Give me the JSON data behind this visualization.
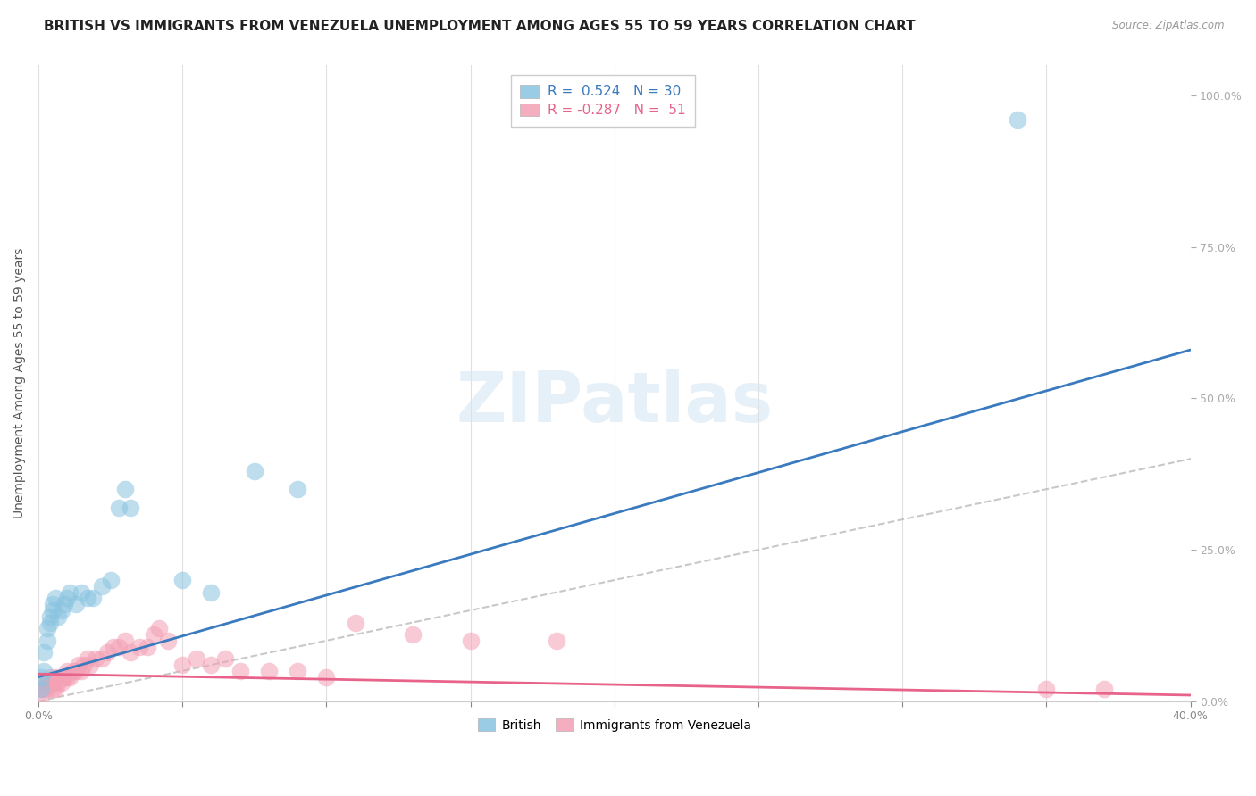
{
  "title": "BRITISH VS IMMIGRANTS FROM VENEZUELA UNEMPLOYMENT AMONG AGES 55 TO 59 YEARS CORRELATION CHART",
  "source": "Source: ZipAtlas.com",
  "ylabel": "Unemployment Among Ages 55 to 59 years",
  "xlim": [
    0.0,
    0.4
  ],
  "ylim": [
    0.0,
    1.05
  ],
  "x_ticks": [
    0.0,
    0.05,
    0.1,
    0.15,
    0.2,
    0.25,
    0.3,
    0.35,
    0.4
  ],
  "x_tick_labels": [
    "0.0%",
    "",
    "",
    "",
    "",
    "",
    "",
    "",
    "40.0%"
  ],
  "y_ticks_right": [
    0.0,
    0.25,
    0.5,
    0.75,
    1.0
  ],
  "y_tick_labels_right": [
    "0.0%",
    "25.0%",
    "50.0%",
    "75.0%",
    "100.0%"
  ],
  "british_color": "#89c4e1",
  "venezuela_color": "#f4a0b5",
  "british_line_color": "#3a7abf",
  "venezuela_line_color": "#e8638a",
  "ref_line_color": "#bbbbbb",
  "legend_british_R": "0.524",
  "legend_british_N": "30",
  "legend_venezuela_R": "-0.287",
  "legend_venezuela_N": "51",
  "legend_label_british": "British",
  "legend_label_venezuela": "Immigrants from Venezuela",
  "watermark": "ZIPatlas",
  "british_x": [
    0.001,
    0.001,
    0.002,
    0.002,
    0.003,
    0.003,
    0.004,
    0.004,
    0.005,
    0.005,
    0.006,
    0.007,
    0.008,
    0.009,
    0.01,
    0.011,
    0.013,
    0.015,
    0.017,
    0.019,
    0.022,
    0.025,
    0.028,
    0.03,
    0.032,
    0.05,
    0.06,
    0.075,
    0.09,
    0.34
  ],
  "british_y": [
    0.02,
    0.04,
    0.05,
    0.08,
    0.1,
    0.12,
    0.13,
    0.14,
    0.15,
    0.16,
    0.17,
    0.14,
    0.15,
    0.16,
    0.17,
    0.18,
    0.16,
    0.18,
    0.17,
    0.17,
    0.19,
    0.2,
    0.32,
    0.35,
    0.32,
    0.2,
    0.18,
    0.38,
    0.35,
    0.96
  ],
  "venezuela_x": [
    0.001,
    0.001,
    0.002,
    0.002,
    0.003,
    0.003,
    0.004,
    0.004,
    0.005,
    0.005,
    0.006,
    0.006,
    0.007,
    0.008,
    0.009,
    0.01,
    0.01,
    0.011,
    0.012,
    0.013,
    0.014,
    0.015,
    0.016,
    0.017,
    0.018,
    0.02,
    0.022,
    0.024,
    0.026,
    0.028,
    0.03,
    0.032,
    0.035,
    0.038,
    0.04,
    0.042,
    0.045,
    0.05,
    0.055,
    0.06,
    0.065,
    0.07,
    0.08,
    0.09,
    0.1,
    0.11,
    0.13,
    0.15,
    0.18,
    0.35,
    0.37
  ],
  "venezuela_y": [
    0.01,
    0.02,
    0.02,
    0.03,
    0.02,
    0.03,
    0.03,
    0.04,
    0.02,
    0.03,
    0.02,
    0.04,
    0.03,
    0.03,
    0.04,
    0.04,
    0.05,
    0.04,
    0.05,
    0.05,
    0.06,
    0.05,
    0.06,
    0.07,
    0.06,
    0.07,
    0.07,
    0.08,
    0.09,
    0.09,
    0.1,
    0.08,
    0.09,
    0.09,
    0.11,
    0.12,
    0.1,
    0.06,
    0.07,
    0.06,
    0.07,
    0.05,
    0.05,
    0.05,
    0.04,
    0.13,
    0.11,
    0.1,
    0.1,
    0.02,
    0.02
  ],
  "british_trend_x": [
    0.0,
    0.4
  ],
  "british_trend_y": [
    0.04,
    0.58
  ],
  "venezuela_trend_x": [
    0.0,
    0.4
  ],
  "venezuela_trend_y": [
    0.045,
    0.01
  ],
  "ref_line_x": [
    0.0,
    1.0
  ],
  "ref_line_y": [
    0.0,
    1.0
  ],
  "grid_color": "#e0e0e0",
  "title_fontsize": 11,
  "axis_label_fontsize": 10,
  "tick_fontsize": 9
}
